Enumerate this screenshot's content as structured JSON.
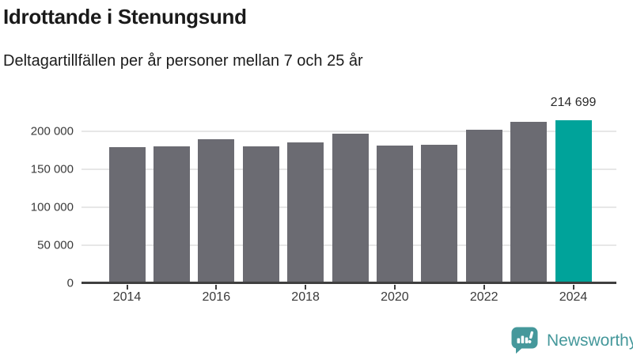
{
  "header": {
    "title": "Idrottande i Stenungsund",
    "subtitle": "Deltagartillfällen per år personer mellan 7 och 25 år"
  },
  "chart_data": {
    "type": "bar",
    "title": "Idrottande i Stenungsund",
    "subtitle": "Deltagartillfällen per år personer mellan 7 och 25 år",
    "xlabel": "",
    "ylabel": "",
    "categories": [
      "2014",
      "2015",
      "2016",
      "2017",
      "2018",
      "2019",
      "2020",
      "2021",
      "2022",
      "2023",
      "2024"
    ],
    "values": [
      179000,
      180000,
      189500,
      180500,
      185500,
      196500,
      181500,
      182000,
      202500,
      213000,
      214699
    ],
    "highlight_index": 10,
    "annotation": {
      "index": 10,
      "text": "214 699"
    },
    "ylim": [
      0,
      220000
    ],
    "yticks": [
      {
        "value": 0,
        "label": "0"
      },
      {
        "value": 50000,
        "label": "50 000"
      },
      {
        "value": 100000,
        "label": "100 000"
      },
      {
        "value": 150000,
        "label": "150 000"
      },
      {
        "value": 200000,
        "label": "200 000"
      }
    ],
    "xticks": [
      "2014",
      "2016",
      "2018",
      "2020",
      "2022",
      "2024"
    ],
    "grid": "horizontal",
    "legend": "none",
    "colors": {
      "bar": "#6b6b72",
      "highlight": "#00a39a",
      "grid": "#e7e7e7",
      "axis": "#3f3f3f",
      "tick_text": "#3a3a3a"
    }
  },
  "footer": {
    "brand": "Newsworthy",
    "logo_color": "#45989b"
  }
}
